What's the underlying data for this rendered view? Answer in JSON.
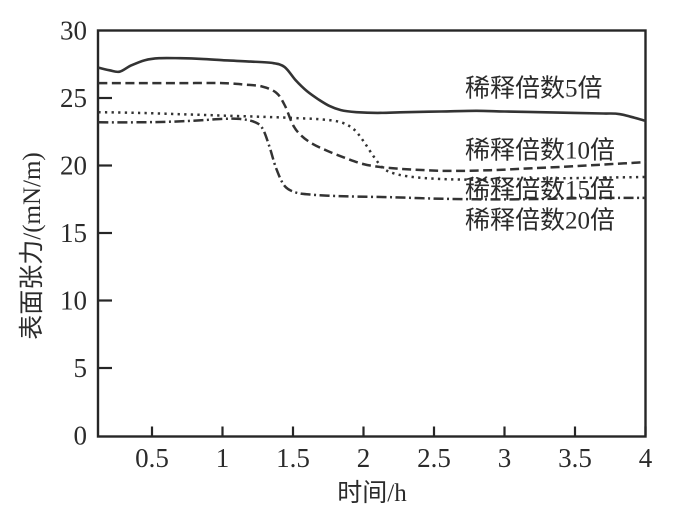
{
  "chart_data": {
    "type": "line",
    "title": "",
    "xlabel": "时间/h",
    "ylabel": "表面张力/(mN/m)",
    "xlim": [
      0.12,
      4.0
    ],
    "ylim": [
      0,
      30
    ],
    "x_ticks": [
      "0.5",
      "1",
      "1.5",
      "2",
      "2.5",
      "3",
      "3.5",
      "4"
    ],
    "y_ticks": [
      "0",
      "5",
      "10",
      "15",
      "20",
      "25",
      "30"
    ],
    "grid": false,
    "legend_position": "inline-labels-right",
    "series": [
      {
        "name": "稀释倍数5倍",
        "style": "solid",
        "label_pos": [
          2.72,
          25.75
        ],
        "points": [
          [
            0.12,
            27.25
          ],
          [
            0.2,
            27.05
          ],
          [
            0.27,
            26.95
          ],
          [
            0.35,
            27.4
          ],
          [
            0.45,
            27.8
          ],
          [
            0.55,
            27.95
          ],
          [
            0.7,
            27.95
          ],
          [
            0.85,
            27.9
          ],
          [
            1.0,
            27.8
          ],
          [
            1.2,
            27.7
          ],
          [
            1.35,
            27.6
          ],
          [
            1.44,
            27.3
          ],
          [
            1.52,
            26.3
          ],
          [
            1.6,
            25.5
          ],
          [
            1.68,
            24.9
          ],
          [
            1.76,
            24.4
          ],
          [
            1.84,
            24.1
          ],
          [
            1.95,
            23.95
          ],
          [
            2.1,
            23.9
          ],
          [
            2.3,
            23.95
          ],
          [
            2.55,
            24.0
          ],
          [
            2.8,
            24.05
          ],
          [
            3.0,
            24.0
          ],
          [
            3.25,
            23.95
          ],
          [
            3.5,
            23.9
          ],
          [
            3.7,
            23.85
          ],
          [
            3.82,
            23.8
          ],
          [
            4.0,
            23.3
          ]
        ]
      },
      {
        "name": "稀释倍数10倍",
        "style": "dashed",
        "label_pos": [
          2.72,
          21.15
        ],
        "points": [
          [
            0.12,
            26.1
          ],
          [
            0.4,
            26.1
          ],
          [
            0.7,
            26.1
          ],
          [
            1.0,
            26.1
          ],
          [
            1.15,
            26.0
          ],
          [
            1.28,
            25.85
          ],
          [
            1.38,
            25.4
          ],
          [
            1.44,
            24.5
          ],
          [
            1.5,
            23.0
          ],
          [
            1.56,
            22.2
          ],
          [
            1.64,
            21.6
          ],
          [
            1.74,
            21.1
          ],
          [
            1.86,
            20.6
          ],
          [
            2.0,
            20.1
          ],
          [
            2.15,
            19.85
          ],
          [
            2.35,
            19.7
          ],
          [
            2.6,
            19.6
          ],
          [
            2.9,
            19.65
          ],
          [
            3.2,
            19.8
          ],
          [
            3.5,
            19.95
          ],
          [
            3.75,
            20.1
          ],
          [
            4.0,
            20.25
          ]
        ]
      },
      {
        "name": "稀释倍数15倍",
        "style": "dotted",
        "label_pos": [
          2.72,
          18.26
        ],
        "points": [
          [
            0.12,
            23.95
          ],
          [
            0.4,
            23.9
          ],
          [
            0.7,
            23.8
          ],
          [
            1.0,
            23.7
          ],
          [
            1.3,
            23.6
          ],
          [
            1.55,
            23.5
          ],
          [
            1.72,
            23.4
          ],
          [
            1.84,
            23.2
          ],
          [
            1.93,
            22.7
          ],
          [
            2.0,
            21.8
          ],
          [
            2.07,
            20.7
          ],
          [
            2.14,
            19.8
          ],
          [
            2.22,
            19.4
          ],
          [
            2.35,
            19.15
          ],
          [
            2.55,
            19.0
          ],
          [
            2.8,
            18.95
          ],
          [
            3.1,
            19.0
          ],
          [
            3.4,
            19.05
          ],
          [
            3.7,
            19.1
          ],
          [
            4.0,
            19.15
          ]
        ]
      },
      {
        "name": "稀释倍数20倍",
        "style": "dash-dot",
        "label_pos": [
          2.72,
          15.96
        ],
        "points": [
          [
            0.12,
            23.2
          ],
          [
            0.4,
            23.2
          ],
          [
            0.65,
            23.25
          ],
          [
            0.85,
            23.35
          ],
          [
            1.0,
            23.45
          ],
          [
            1.12,
            23.45
          ],
          [
            1.22,
            23.25
          ],
          [
            1.28,
            22.8
          ],
          [
            1.33,
            21.5
          ],
          [
            1.38,
            19.8
          ],
          [
            1.44,
            18.5
          ],
          [
            1.52,
            18.0
          ],
          [
            1.62,
            17.85
          ],
          [
            1.78,
            17.75
          ],
          [
            1.95,
            17.7
          ],
          [
            2.2,
            17.65
          ],
          [
            2.5,
            17.55
          ],
          [
            2.8,
            17.5
          ],
          [
            3.1,
            17.5
          ],
          [
            3.4,
            17.55
          ],
          [
            3.7,
            17.6
          ],
          [
            4.0,
            17.6
          ]
        ]
      }
    ]
  },
  "colors": {
    "background": "#ffffff",
    "axis": "#262626",
    "line": "#333333",
    "text": "#2b2b2b"
  }
}
